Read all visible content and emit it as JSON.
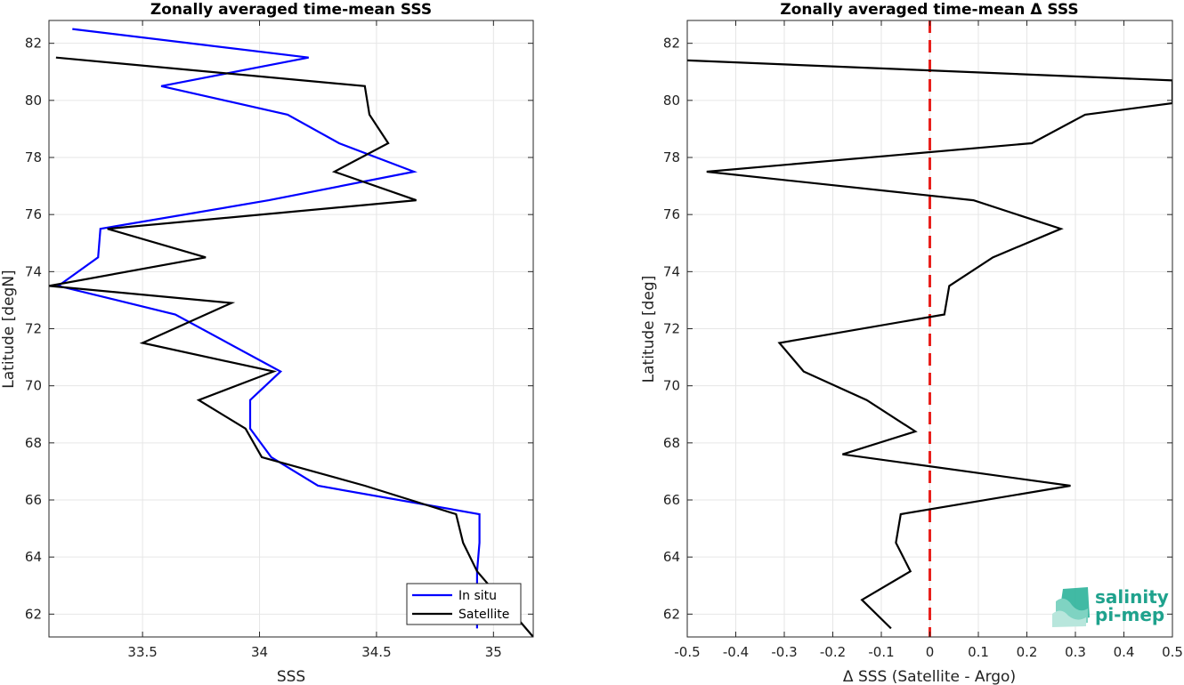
{
  "chart_data": [
    {
      "type": "line",
      "title": "Zonally averaged time-mean SSS",
      "xlabel": "SSS",
      "ylabel": "Latitude [degN]",
      "xlim": [
        33.1,
        35.17
      ],
      "ylim": [
        61.2,
        82.8
      ],
      "xticks": [
        33.5,
        34,
        34.5,
        35
      ],
      "xtick_labels": [
        "33.5",
        "34",
        "34.5",
        "35"
      ],
      "yticks": [
        62,
        64,
        66,
        68,
        70,
        72,
        74,
        76,
        78,
        80,
        82
      ],
      "ytick_labels": [
        "62",
        "64",
        "66",
        "68",
        "70",
        "72",
        "74",
        "76",
        "78",
        "80",
        "82"
      ],
      "grid": true,
      "legend": "bottom-right",
      "series": [
        {
          "name": "In situ",
          "color": "#0000ff",
          "x": [
            33.2,
            34.21,
            33.58,
            34.12,
            34.34,
            34.66,
            34.04,
            33.32,
            33.31,
            33.14,
            33.64,
            34.09,
            33.96,
            33.96,
            34.05,
            34.25,
            34.94,
            34.94,
            34.93,
            34.93
          ],
          "y": [
            82.5,
            81.5,
            80.5,
            79.5,
            78.5,
            77.5,
            76.5,
            75.5,
            74.5,
            73.5,
            72.5,
            70.5,
            69.5,
            68.5,
            67.5,
            66.5,
            65.5,
            64.5,
            63.5,
            61.5
          ]
        },
        {
          "name": "Satellite",
          "color": "#000000",
          "x": [
            33.13,
            34.45,
            34.47,
            34.55,
            34.32,
            34.67,
            33.35,
            33.77,
            33.1,
            33.88,
            33.5,
            34.06,
            33.74,
            33.94,
            34.01,
            34.45,
            34.84,
            34.87,
            34.93,
            35.17
          ],
          "y": [
            81.5,
            80.5,
            79.5,
            78.5,
            77.5,
            76.5,
            75.5,
            74.5,
            73.5,
            72.9,
            71.5,
            70.5,
            69.5,
            68.5,
            67.5,
            66.5,
            65.5,
            64.5,
            63.5,
            61.2
          ]
        }
      ]
    },
    {
      "type": "line",
      "title": "Zonally averaged time-mean Δ SSS",
      "xlabel": "Δ SSS (Satellite - Argo)",
      "ylabel": "Latitude [deg]",
      "xlim": [
        -0.5,
        0.5
      ],
      "ylim": [
        61.2,
        82.8
      ],
      "xticks": [
        -0.5,
        -0.4,
        -0.3,
        -0.2,
        -0.1,
        0,
        0.1,
        0.2,
        0.3,
        0.4,
        0.5
      ],
      "xtick_labels": [
        "-0.5",
        "-0.4",
        "-0.3",
        "-0.2",
        "-0.1",
        "0",
        "0.1",
        "0.2",
        "0.3",
        "0.4",
        "0.5"
      ],
      "yticks": [
        62,
        64,
        66,
        68,
        70,
        72,
        74,
        76,
        78,
        80,
        82
      ],
      "ytick_labels": [
        "62",
        "64",
        "66",
        "68",
        "70",
        "72",
        "74",
        "76",
        "78",
        "80",
        "82"
      ],
      "grid": true,
      "reference_line": {
        "x": 0,
        "color": "#e8201c",
        "style": "dashed"
      },
      "series": [
        {
          "name": "",
          "color": "#000000",
          "x": [
            -0.5,
            0.5,
            0.5,
            0.32,
            0.21,
            -0.46,
            0.09,
            0.27,
            0.13,
            0.04,
            0.03,
            -0.31,
            -0.26,
            -0.13,
            -0.03,
            -0.18,
            0.29,
            -0.06,
            -0.07,
            -0.04,
            -0.14,
            -0.08
          ],
          "y": [
            81.4,
            80.7,
            79.9,
            79.5,
            78.5,
            77.5,
            76.5,
            75.5,
            74.5,
            73.5,
            72.5,
            71.5,
            70.5,
            69.5,
            68.4,
            67.6,
            66.5,
            65.5,
            64.5,
            63.5,
            62.5,
            61.5
          ]
        }
      ]
    }
  ],
  "logo": {
    "line1": "salinity",
    "line2": "pi-mep",
    "color": "#1fa28d"
  }
}
